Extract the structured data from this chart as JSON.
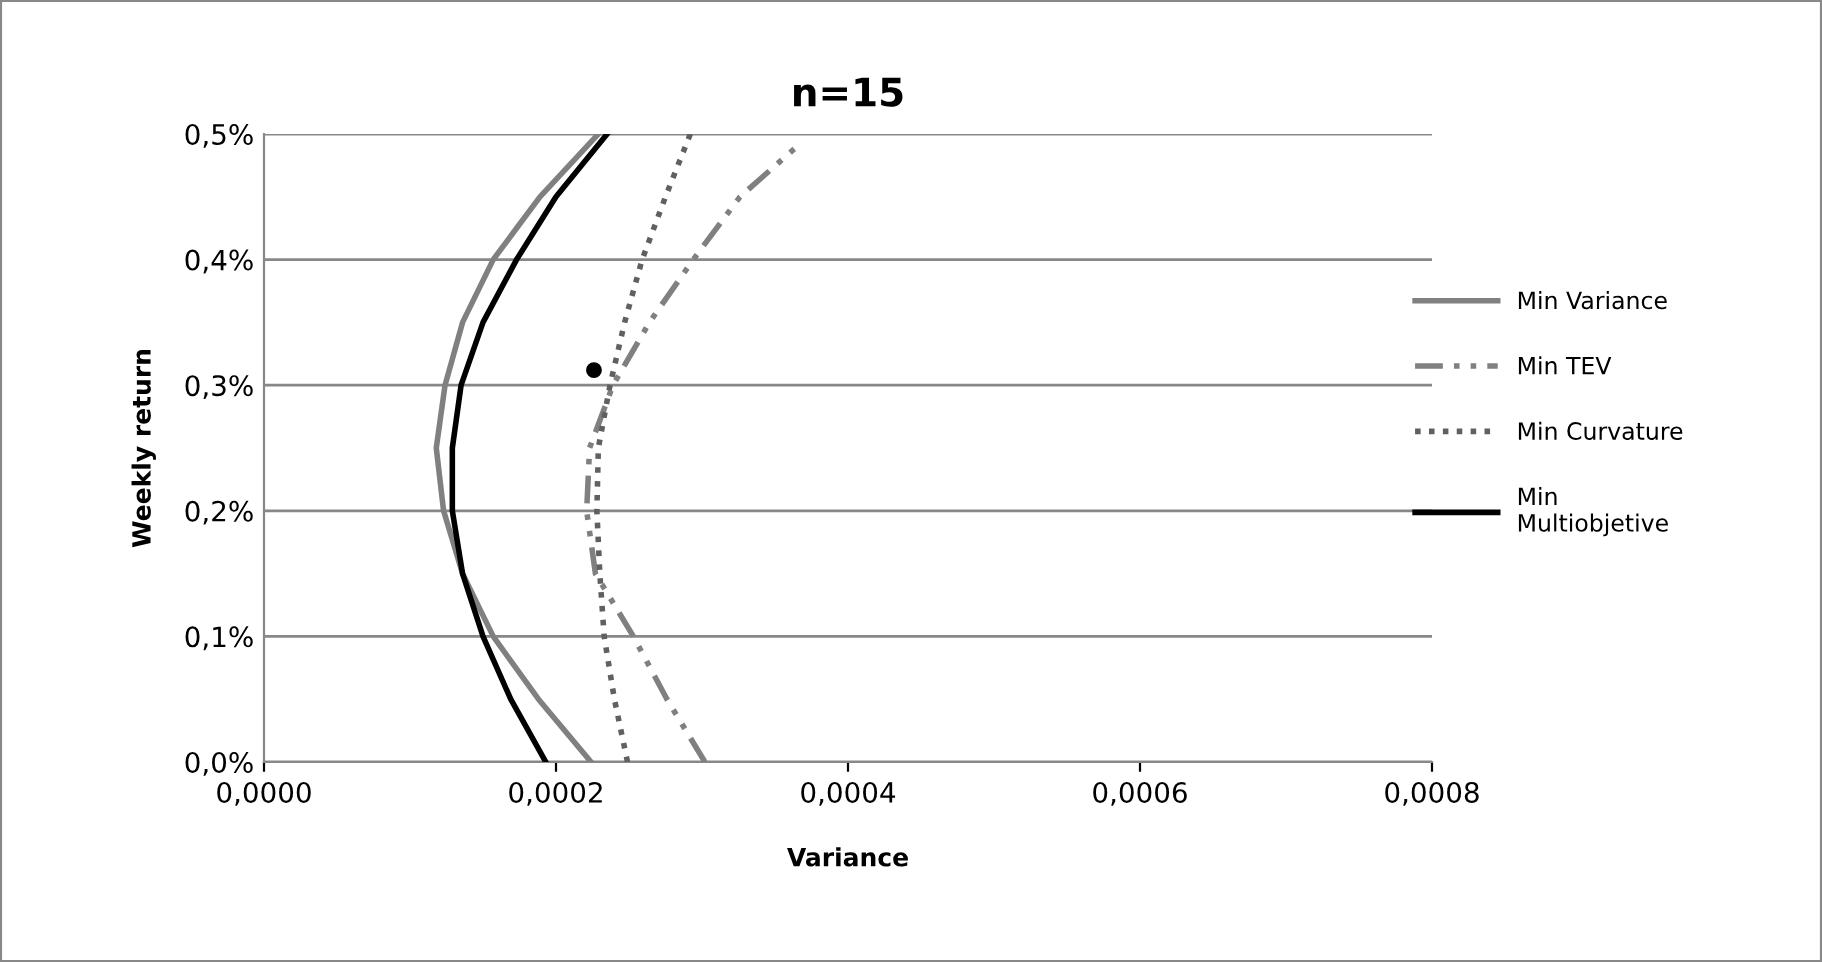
{
  "chart_data": {
    "type": "line",
    "title": "n=15",
    "xlabel": "Variance",
    "ylabel": "Weekly return",
    "xlim": [
      0,
      0.0008
    ],
    "xticks": [
      {
        "value": 0,
        "label": "0,0000"
      },
      {
        "value": 0.0002,
        "label": "0,0002"
      },
      {
        "value": 0.0004,
        "label": "0,0004"
      },
      {
        "value": 0.0006,
        "label": "0,0006"
      },
      {
        "value": 0.0008,
        "label": "0,0008"
      }
    ],
    "ylim": [
      0,
      0.5
    ],
    "yticks": [
      {
        "value": 0,
        "label": "0,0%"
      },
      {
        "value": 0.1,
        "label": "0,1%"
      },
      {
        "value": 0.2,
        "label": "0,2%"
      },
      {
        "value": 0.3,
        "label": "0,3%"
      },
      {
        "value": 0.4,
        "label": "0,4%"
      },
      {
        "value": 0.5,
        "label": "0,5%"
      }
    ],
    "grid": "y",
    "legend": "right",
    "series": [
      {
        "type": "scatter",
        "marker": "circle",
        "color": "#000000",
        "x": [
          0.000226
        ],
        "values": [
          0.312
        ]
      },
      {
        "name": "Min Variance",
        "color": "#808080",
        "line_style": "solid",
        "x": [
          0.000224,
          0.000188,
          0.000157,
          0.000136,
          0.000123,
          0.000118,
          0.000124,
          0.000136,
          0.000157,
          0.000189,
          0.000229
        ],
        "values": [
          0,
          0.05,
          0.1,
          0.15,
          0.2,
          0.25,
          0.3,
          0.35,
          0.4,
          0.45,
          0.5
        ]
      },
      {
        "name": "Min TEV",
        "color": "#808080",
        "line_style": "dashed",
        "x": [
          0.000302,
          0.000276,
          0.000253,
          0.000227,
          0.000221,
          0.000223,
          0.000239,
          0.000264,
          0.000294,
          0.000326,
          0.000365
        ],
        "values": [
          0,
          0.05,
          0.1,
          0.15,
          0.2,
          0.25,
          0.3,
          0.35,
          0.4,
          0.45,
          0.49
        ]
      },
      {
        "name": "Min Curvature",
        "color": "#606060",
        "line_style": "dotted",
        "x": [
          0.000249,
          0.00024,
          0.000233,
          0.00023,
          0.000228,
          0.000229,
          0.000237,
          0.000247,
          0.000259,
          0.000275,
          0.000292
        ],
        "values": [
          0,
          0.05,
          0.1,
          0.15,
          0.2,
          0.25,
          0.3,
          0.35,
          0.4,
          0.45,
          0.5
        ]
      },
      {
        "name": "Min\nMultiobjetive",
        "color": "#000000",
        "line_style": "solid",
        "x": [
          0.000193,
          0.000169,
          0.00015,
          0.000136,
          0.000129,
          0.000129,
          0.000135,
          0.00015,
          0.000173,
          0.0002,
          0.000235
        ],
        "values": [
          0,
          0.05,
          0.1,
          0.15,
          0.2,
          0.25,
          0.3,
          0.35,
          0.4,
          0.45,
          0.5
        ]
      }
    ]
  }
}
